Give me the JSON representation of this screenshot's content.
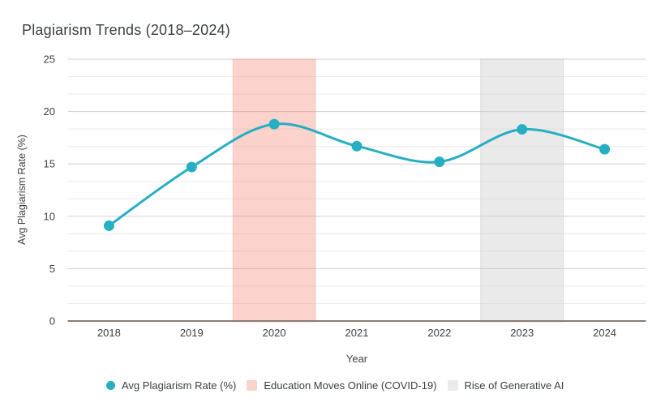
{
  "title": "Plagiarism Trends (2018–2024)",
  "chart_data": {
    "type": "line",
    "title": "Plagiarism Trends (2018–2024)",
    "x": [
      2018,
      2019,
      2020,
      2021,
      2022,
      2023,
      2024
    ],
    "series": [
      {
        "name": "Avg Plagiarism Rate (%)",
        "values": [
          9.1,
          14.7,
          18.8,
          16.7,
          15.2,
          18.3,
          16.4
        ],
        "color": "#26aec2",
        "smooth": true,
        "marker": "circle"
      }
    ],
    "xlabel": "Year",
    "ylabel": "Avg Plagiarism Rate (%)",
    "ylim": [
      0,
      25
    ],
    "yticks": [
      0,
      5,
      10,
      15,
      20,
      25
    ],
    "minor_grid_step": 1.6667,
    "grid": "horizontal major+minor",
    "legend_position": "bottom",
    "bands": [
      {
        "label": "Education Moves Online (COVID-19)",
        "from": 2019.5,
        "to": 2020.5,
        "fill": "rgba(244,130,110,0.35)",
        "edge": "rgba(240,120,100,0.22)"
      },
      {
        "label": "Rise of Generative AI",
        "from": 2022.5,
        "to": 2023.5,
        "fill": "rgba(208,208,208,0.45)",
        "edge": "rgba(175,175,175,0.35)"
      }
    ]
  },
  "colors": {
    "series_teal": "#26aec2",
    "band_pink": "#fbd3cc",
    "band_gray": "#ebebeb",
    "grid_major": "#cfcfcf",
    "grid_minor": "#ebebeb",
    "baseline": "#8c7b74",
    "text_dark": "#3c4043"
  },
  "legend": {
    "items": [
      {
        "label": "Avg Plagiarism Rate (%)",
        "shape": "circle",
        "color": "#26aec2"
      },
      {
        "label": "Education Moves Online (COVID-19)",
        "shape": "square",
        "color": "#fbd3cc"
      },
      {
        "label": "Rise of Generative AI",
        "shape": "square",
        "color": "#ebebeb"
      }
    ]
  }
}
